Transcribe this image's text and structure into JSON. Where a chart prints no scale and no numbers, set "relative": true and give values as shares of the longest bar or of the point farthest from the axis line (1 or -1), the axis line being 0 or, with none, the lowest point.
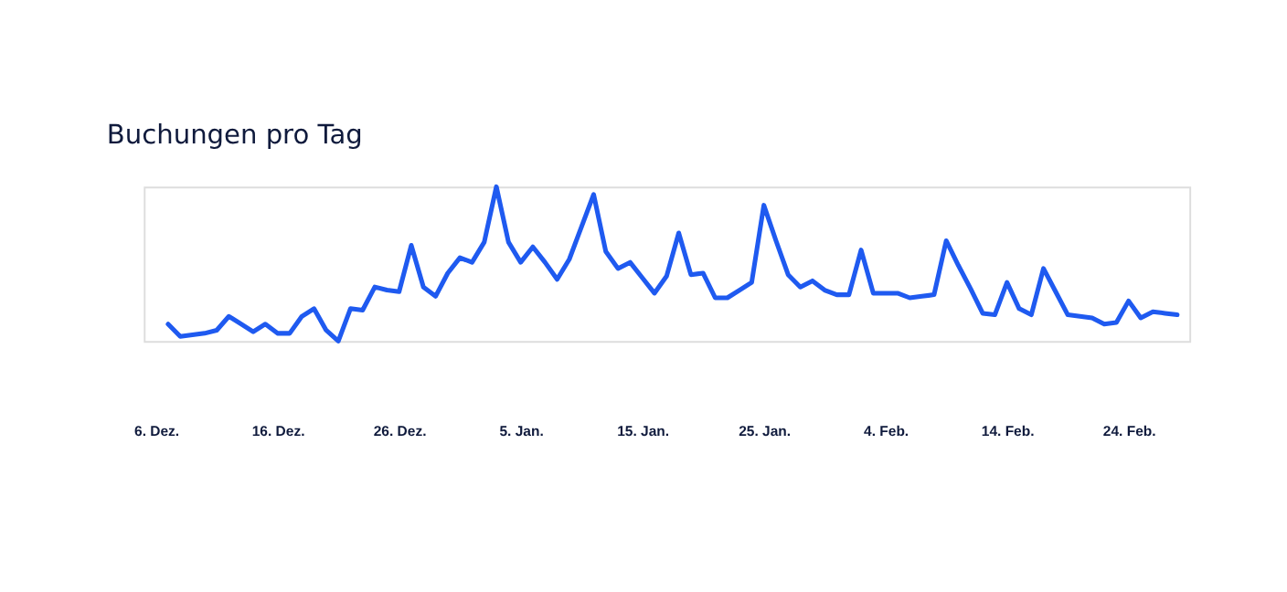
{
  "chart_data": {
    "type": "line",
    "title": "Buchungen pro Tag",
    "relative": true,
    "grid": false,
    "legend": false,
    "marker": "none",
    "line_style": "solid",
    "categories": [
      "6. Dez.",
      null,
      null,
      null,
      null,
      null,
      null,
      null,
      null,
      null,
      "16. Dez.",
      null,
      null,
      null,
      null,
      null,
      null,
      null,
      null,
      null,
      "26. Dez.",
      null,
      null,
      null,
      null,
      null,
      null,
      null,
      null,
      null,
      "5. Jan.",
      null,
      null,
      null,
      null,
      null,
      null,
      null,
      null,
      null,
      "15. Jan.",
      null,
      null,
      null,
      null,
      null,
      null,
      null,
      null,
      null,
      "25. Jan.",
      null,
      null,
      null,
      null,
      null,
      null,
      null,
      null,
      null,
      "4. Feb.",
      null,
      null,
      null,
      null,
      null,
      null,
      null,
      null,
      null,
      "14. Feb.",
      null,
      null,
      null,
      null,
      null,
      null,
      null,
      null,
      null,
      "24. Feb.",
      null,
      null,
      null,
      null
    ],
    "series": [
      {
        "color": "#1f5af0",
        "values": [
          null,
          0.11,
          0.03,
          0.04,
          0.05,
          0.07,
          0.16,
          0.11,
          0.06,
          0.11,
          0.05,
          0.05,
          0.16,
          0.21,
          0.07,
          0.0,
          0.21,
          0.2,
          0.35,
          0.33,
          0.32,
          0.62,
          0.35,
          0.29,
          0.44,
          0.54,
          0.51,
          0.64,
          1.0,
          0.64,
          0.51,
          0.61,
          0.51,
          0.4,
          0.53,
          0.74,
          0.95,
          0.58,
          0.47,
          0.51,
          0.41,
          0.31,
          0.42,
          0.7,
          0.43,
          0.44,
          0.28,
          0.28,
          0.33,
          0.38,
          0.88,
          0.65,
          0.43,
          0.35,
          0.39,
          0.33,
          0.3,
          0.3,
          0.59,
          0.31,
          0.31,
          0.31,
          0.28,
          0.29,
          0.3,
          0.65,
          0.49,
          0.34,
          0.18,
          0.17,
          0.38,
          0.21,
          0.17,
          0.47,
          0.32,
          0.17,
          0.16,
          0.15,
          0.11,
          0.12,
          0.26,
          0.15,
          0.19,
          0.18,
          0.17
        ]
      }
    ]
  }
}
